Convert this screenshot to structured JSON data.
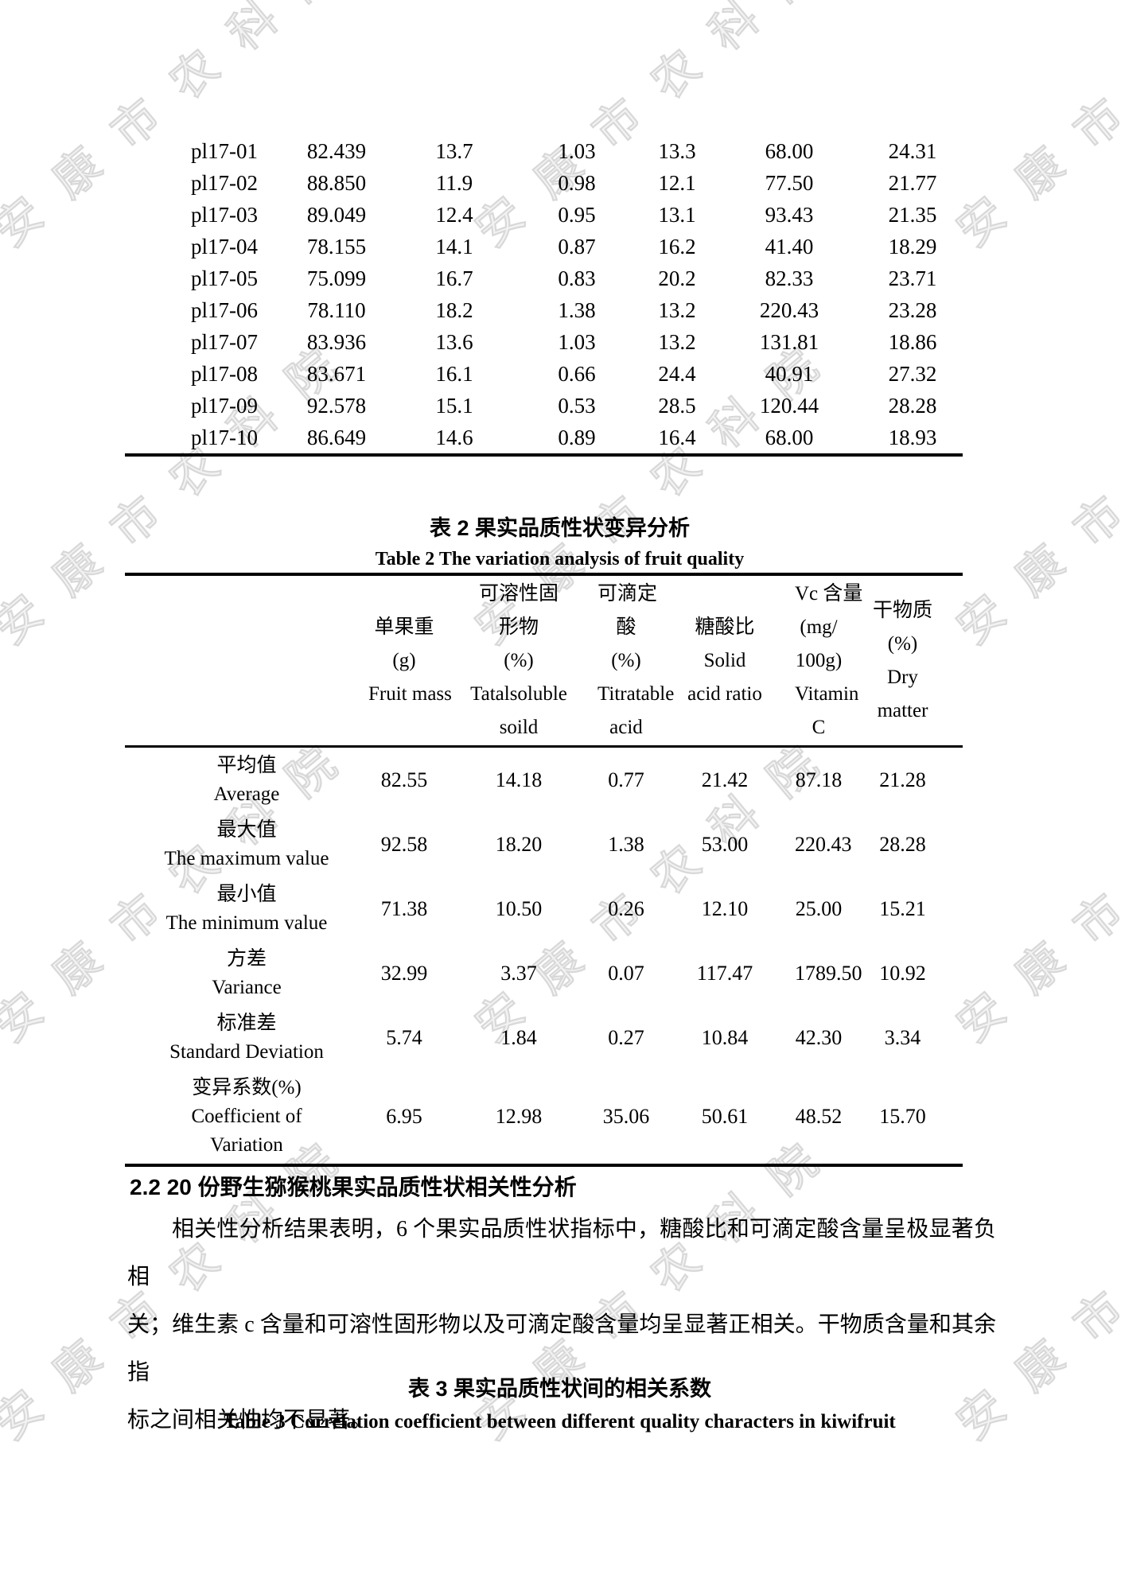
{
  "page": {
    "background": "#ffffff",
    "text_color": "#000000"
  },
  "watermark": {
    "text": "安康市农科院",
    "outline_color": "#d8d8d8"
  },
  "table1": {
    "rows": [
      {
        "id": "pl17-01",
        "values": [
          "82.439",
          "13.7",
          "1.03",
          "13.3",
          "68.00",
          "24.31"
        ]
      },
      {
        "id": "pl17-02",
        "values": [
          "88.850",
          "11.9",
          "0.98",
          "12.1",
          "77.50",
          "21.77"
        ]
      },
      {
        "id": "pl17-03",
        "values": [
          "89.049",
          "12.4",
          "0.95",
          "13.1",
          "93.43",
          "21.35"
        ]
      },
      {
        "id": "pl17-04",
        "values": [
          "78.155",
          "14.1",
          "0.87",
          "16.2",
          "41.40",
          "18.29"
        ]
      },
      {
        "id": "pl17-05",
        "values": [
          "75.099",
          "16.7",
          "0.83",
          "20.2",
          "82.33",
          "23.71"
        ]
      },
      {
        "id": "pl17-06",
        "values": [
          "78.110",
          "18.2",
          "1.38",
          "13.2",
          "220.43",
          "23.28"
        ]
      },
      {
        "id": "pl17-07",
        "values": [
          "83.936",
          "13.6",
          "1.03",
          "13.2",
          "131.81",
          "18.86"
        ]
      },
      {
        "id": "pl17-08",
        "values": [
          "83.671",
          "16.1",
          "0.66",
          "24.4",
          "40.91",
          "27.32"
        ]
      },
      {
        "id": "pl17-09",
        "values": [
          "92.578",
          "15.1",
          "0.53",
          "28.5",
          "120.44",
          "28.28"
        ]
      },
      {
        "id": "pl17-10",
        "values": [
          "86.649",
          "14.6",
          "0.89",
          "16.4",
          "68.00",
          "18.93"
        ]
      }
    ]
  },
  "table2": {
    "title_zh": "表 2 果实品质性状变异分析",
    "title_en": "Table 2 The variation analysis of fruit quality",
    "columns": [
      {
        "lines": []
      },
      {
        "lines": [
          "单果重",
          "(g)",
          "Fruit mass"
        ]
      },
      {
        "lines": [
          "可溶性固",
          "形物",
          "(%)",
          "Tatalsoluble",
          "soild"
        ]
      },
      {
        "lines": [
          "可滴定",
          "酸",
          "(%)",
          "Titratable",
          "acid"
        ]
      },
      {
        "lines": [
          "糖酸比",
          "Solid",
          "acid ratio"
        ]
      },
      {
        "lines": [
          "Vc 含量",
          "(mg/",
          "100g)",
          "Vitamin",
          "C"
        ]
      },
      {
        "lines": [
          "干物质",
          "(%)",
          "Dry",
          "matter"
        ]
      }
    ],
    "rows": [
      {
        "label_lines": [
          "平均值",
          "Average"
        ],
        "values": [
          "82.55",
          "14.18",
          "0.77",
          "21.42",
          "87.18",
          "21.28"
        ]
      },
      {
        "label_lines": [
          "最大值",
          "The maximum value"
        ],
        "values": [
          "92.58",
          "18.20",
          "1.38",
          "53.00",
          "220.43",
          "28.28"
        ]
      },
      {
        "label_lines": [
          "最小值",
          "The minimum value"
        ],
        "values": [
          "71.38",
          "10.50",
          "0.26",
          "12.10",
          "25.00",
          "15.21"
        ]
      },
      {
        "label_lines": [
          "方差",
          "Variance"
        ],
        "values": [
          "32.99",
          "3.37",
          "0.07",
          "117.47",
          "1789.50",
          "10.92"
        ]
      },
      {
        "label_lines": [
          "标准差",
          "Standard Deviation"
        ],
        "values": [
          "5.74",
          "1.84",
          "0.27",
          "10.84",
          "42.30",
          "3.34"
        ]
      },
      {
        "label_lines": [
          "变异系数(%)",
          "Coefficient of",
          "Variation"
        ],
        "values": [
          "6.95",
          "12.98",
          "35.06",
          "50.61",
          "48.52",
          "15.70"
        ]
      }
    ]
  },
  "section": {
    "heading": "2.2 20 份野生猕猴桃果实品质性状相关性分析",
    "paragraph_lines": [
      "相关性分析结果表明，6 个果实品质性状指标中，糖酸比和可滴定酸含量呈极显著负相",
      "关；维生素 c 含量和可溶性固形物以及可滴定酸含量均呈显著正相关。干物质含量和其余指",
      "标之间相关性均不显著。"
    ]
  },
  "table3": {
    "title_zh": "表 3 果实品质性状间的相关系数",
    "title_en": "Table 3 Correlation coefficient between different quality characters in kiwifruit"
  }
}
